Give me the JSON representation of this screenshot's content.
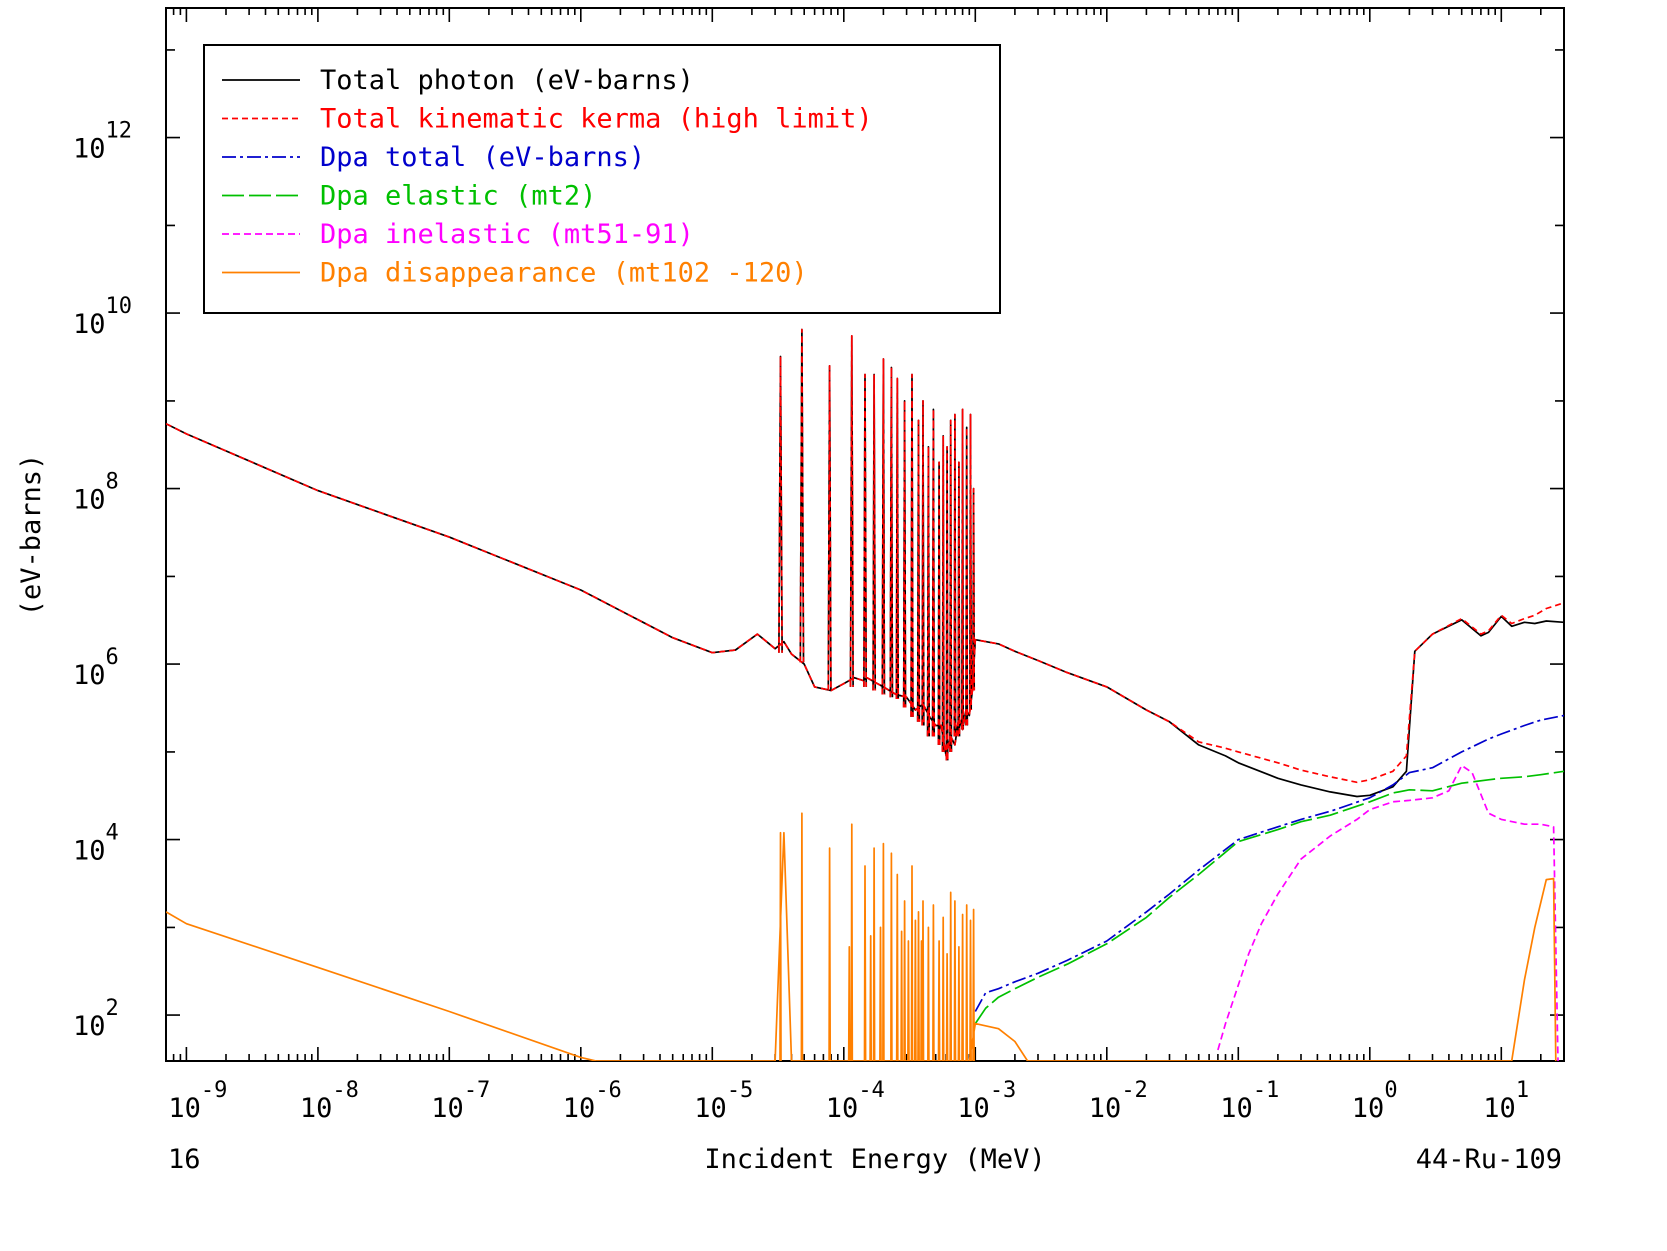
{
  "chart_data": {
    "type": "line",
    "title": "",
    "xlabel": "Incident Energy (MeV)",
    "ylabel": "(eV-barns)",
    "x_scale": "log",
    "y_scale": "log",
    "xlim": [
      7e-10,
      30
    ],
    "ylim": [
      30,
      30000000000000.0
    ],
    "grid": false,
    "legend_position": "top-left",
    "corner_left": "16",
    "corner_right": "44-Ru-109",
    "x_ticks": [
      {
        "value": 1e-09,
        "base": "10",
        "exp": "-9"
      },
      {
        "value": 1e-08,
        "base": "10",
        "exp": "-8"
      },
      {
        "value": 1e-07,
        "base": "10",
        "exp": "-7"
      },
      {
        "value": 1e-06,
        "base": "10",
        "exp": "-6"
      },
      {
        "value": 1e-05,
        "base": "10",
        "exp": "-5"
      },
      {
        "value": 0.0001,
        "base": "10",
        "exp": "-4"
      },
      {
        "value": 0.001,
        "base": "10",
        "exp": "-3"
      },
      {
        "value": 0.01,
        "base": "10",
        "exp": "-2"
      },
      {
        "value": 0.1,
        "base": "10",
        "exp": "-1"
      },
      {
        "value": 1,
        "base": "10",
        "exp": "0"
      },
      {
        "value": 10,
        "base": "10",
        "exp": "1"
      }
    ],
    "y_ticks": [
      {
        "value": 100,
        "base": "10",
        "exp": "2"
      },
      {
        "value": 10000,
        "base": "10",
        "exp": "4"
      },
      {
        "value": 1000000,
        "base": "10",
        "exp": "6"
      },
      {
        "value": 100000000,
        "base": "10",
        "exp": "8"
      },
      {
        "value": 10000000000,
        "base": "10",
        "exp": "10"
      },
      {
        "value": 1000000000000,
        "base": "10",
        "exp": "12"
      }
    ],
    "series": [
      {
        "name": "Total photon (eV-barns)",
        "color": "#000000",
        "dash": "",
        "x": [
          7e-10,
          1e-09,
          1e-08,
          1e-07,
          1e-06,
          5e-06,
          1e-05,
          1.5e-05,
          2.2e-05,
          3e-05,
          3.5e-05,
          4e-05,
          5e-05,
          6e-05,
          8e-05,
          0.0001,
          0.00012,
          0.00014,
          0.00015,
          0.00018,
          0.0002,
          0.00025,
          0.0003,
          0.00035,
          0.0004,
          0.00045,
          0.0005,
          0.00055,
          0.0006,
          0.00065,
          0.0007,
          0.00075,
          0.0008,
          0.00085,
          0.0009,
          0.00095,
          0.001,
          0.0015,
          0.002,
          0.003,
          0.005,
          0.01,
          0.02,
          0.03,
          0.05,
          0.08,
          0.1,
          0.2,
          0.3,
          0.5,
          0.8,
          1.0,
          1.5,
          1.9,
          2.2,
          3,
          5,
          7,
          8,
          10,
          12,
          15,
          18,
          22,
          30
        ],
        "y": [
          550000000,
          420000000,
          95000000,
          28000000,
          7000000,
          2000000,
          1350000,
          1450000,
          2200000,
          1500000,
          1800000,
          1300000,
          1000000,
          550000,
          500000,
          600000,
          700000,
          650000,
          700000,
          600000,
          550000,
          450000,
          420000,
          300000,
          350000,
          250000,
          200000,
          200000,
          90000,
          150000,
          120000,
          250000,
          180000,
          300000,
          260000,
          500000,
          1900000,
          1700000,
          1400000,
          1100000,
          800000,
          550000,
          300000,
          220000,
          120000,
          90000,
          75000,
          50000,
          42000,
          35000,
          31000,
          32000,
          40000,
          60000,
          1400000,
          2200000,
          3200000,
          2100000,
          2300000,
          3500000,
          2700000,
          3000000,
          2900000,
          3100000,
          3000000
        ]
      },
      {
        "name": "Total kinematic kerma (high limit)",
        "color": "#ff0000",
        "dash": "6,4",
        "x": [
          7e-10,
          1e-09,
          1e-08,
          1e-07,
          1e-06,
          5e-06,
          1e-05,
          1.5e-05,
          2.2e-05,
          3e-05,
          3.5e-05,
          4e-05,
          5e-05,
          6e-05,
          8e-05,
          0.0001,
          0.00012,
          0.00014,
          0.00015,
          0.00018,
          0.0002,
          0.00025,
          0.0003,
          0.00035,
          0.0004,
          0.00045,
          0.0005,
          0.00055,
          0.0006,
          0.00065,
          0.0007,
          0.00075,
          0.0008,
          0.00085,
          0.0009,
          0.00095,
          0.001,
          0.0015,
          0.002,
          0.003,
          0.005,
          0.01,
          0.02,
          0.03,
          0.05,
          0.08,
          0.1,
          0.2,
          0.3,
          0.5,
          0.8,
          1.0,
          1.5,
          1.9,
          2.2,
          3,
          5,
          7,
          8,
          10,
          12,
          15,
          18,
          22,
          30
        ],
        "y": [
          550000000,
          420000000,
          95000000,
          28000000,
          7000000,
          2000000,
          1350000,
          1450000,
          2200000,
          1500000,
          1800000,
          1300000,
          1000000,
          550000,
          500000,
          600000,
          700000,
          650000,
          700000,
          600000,
          550000,
          450000,
          420000,
          300000,
          350000,
          250000,
          200000,
          200000,
          90000,
          150000,
          120000,
          250000,
          180000,
          300000,
          260000,
          500000,
          1900000,
          1700000,
          1400000,
          1100000,
          800000,
          550000,
          300000,
          220000,
          130000,
          110000,
          100000,
          75000,
          62000,
          52000,
          45000,
          48000,
          60000,
          90000,
          1400000,
          2200000,
          3300000,
          2200000,
          2400000,
          3600000,
          2900000,
          3300000,
          3600000,
          4300000,
          5000000
        ]
      },
      {
        "name": "Dpa total (eV-barns)",
        "color": "#0000cc",
        "dash": "14,4,3,4",
        "x": [
          0.001,
          0.0012,
          0.0015,
          0.002,
          0.003,
          0.005,
          0.01,
          0.02,
          0.03,
          0.05,
          0.1,
          0.2,
          0.3,
          0.5,
          1.0,
          1.5,
          2,
          3,
          5,
          8,
          10,
          15,
          20,
          30
        ],
        "y": [
          110,
          180,
          200,
          240,
          300,
          420,
          700,
          1500,
          2400,
          4500,
          10000,
          14000,
          17000,
          21000,
          30000,
          42000,
          58000,
          66000,
          100000,
          140000,
          160000,
          200000,
          230000,
          260000
        ]
      },
      {
        "name": "Dpa elastic (mt2)",
        "color": "#00c000",
        "dash": "22,5",
        "x": [
          0.001,
          0.0012,
          0.0015,
          0.002,
          0.003,
          0.005,
          0.01,
          0.02,
          0.03,
          0.05,
          0.1,
          0.2,
          0.3,
          0.5,
          1.0,
          1.5,
          2,
          3,
          5,
          8,
          10,
          15,
          20,
          30
        ],
        "y": [
          80,
          120,
          160,
          200,
          270,
          380,
          650,
          1300,
          2200,
          4000,
          9500,
          13000,
          16000,
          19000,
          27000,
          34000,
          37000,
          36000,
          44000,
          48000,
          50000,
          52000,
          55000,
          60000
        ]
      },
      {
        "name": "Dpa inelastic (mt51-91)",
        "color": "#ff00ff",
        "dash": "7,4",
        "x": [
          0.07,
          0.08,
          0.1,
          0.12,
          0.15,
          0.2,
          0.3,
          0.5,
          0.8,
          1.0,
          1.5,
          2,
          3,
          4,
          5,
          6,
          8,
          10,
          15,
          20,
          25,
          27
        ],
        "y": [
          40,
          80,
          220,
          500,
          1100,
          2400,
          6000,
          11000,
          17000,
          22000,
          27000,
          28000,
          30000,
          36000,
          70000,
          58000,
          20000,
          17000,
          15000,
          15000,
          14000,
          30
        ]
      },
      {
        "name": "Dpa disappearance (mt102 -120)",
        "color": "#ff8000",
        "dash": "",
        "x": [
          7e-10,
          1e-09,
          1e-08,
          1e-07,
          1e-06,
          1.3e-06,
          3e-05,
          3.5e-05,
          4e-05,
          5e-05,
          8e-05,
          0.0001,
          0.00012,
          0.00015,
          0.0002,
          0.0003,
          0.0004,
          0.0005,
          0.0006,
          0.0007,
          0.0008,
          0.0009,
          0.001,
          0.0015,
          0.002,
          0.0025,
          12,
          15,
          18,
          22,
          25,
          26
        ],
        "y": [
          1500,
          1100,
          350,
          110,
          33,
          30,
          30,
          12000,
          30,
          30,
          30,
          30,
          30,
          30,
          30,
          30,
          30,
          30,
          30,
          30,
          30,
          30,
          80,
          70,
          50,
          30,
          30,
          250,
          1000,
          3500,
          3600,
          30
        ]
      }
    ],
    "resonances": [
      {
        "x": 3.3e-05,
        "y": 3200000000,
        "dip": 1350000,
        "w": 0.012
      },
      {
        "x": 4.8e-05,
        "y": 6500000000,
        "dip": 1050000,
        "w": 0.012
      },
      {
        "x": 7.8e-05,
        "y": 2500000000,
        "dip": 500000,
        "w": 0.01
      },
      {
        "x": 0.000115,
        "y": 5500000000,
        "dip": 550000,
        "w": 0.01
      },
      {
        "x": 0.000145,
        "y": 2000000000,
        "dip": 550000,
        "w": 0.009
      },
      {
        "x": 0.00017,
        "y": 2000000000,
        "dip": 500000,
        "w": 0.008
      },
      {
        "x": 0.0002,
        "y": 3000000000,
        "dip": 450000,
        "w": 0.008
      },
      {
        "x": 0.00023,
        "y": 2400000000,
        "dip": 420000,
        "w": 0.008
      },
      {
        "x": 0.000255,
        "y": 1800000000,
        "dip": 400000,
        "w": 0.007
      },
      {
        "x": 0.00029,
        "y": 1000000000,
        "dip": 320000,
        "w": 0.007
      },
      {
        "x": 0.00033,
        "y": 2000000000,
        "dip": 250000,
        "w": 0.007
      },
      {
        "x": 0.00037,
        "y": 600000000,
        "dip": 220000,
        "w": 0.006
      },
      {
        "x": 0.0004,
        "y": 1000000000,
        "dip": 200000,
        "w": 0.006
      },
      {
        "x": 0.00044,
        "y": 300000000,
        "dip": 150000,
        "w": 0.006
      },
      {
        "x": 0.00048,
        "y": 800000000,
        "dip": 150000,
        "w": 0.006
      },
      {
        "x": 0.00053,
        "y": 200000000,
        "dip": 120000,
        "w": 0.005
      },
      {
        "x": 0.00057,
        "y": 400000000,
        "dip": 100000,
        "w": 0.005
      },
      {
        "x": 0.00061,
        "y": 300000000,
        "dip": 80000,
        "w": 0.005
      },
      {
        "x": 0.00065,
        "y": 600000000,
        "dip": 100000,
        "w": 0.005
      },
      {
        "x": 0.0007,
        "y": 700000000,
        "dip": 150000,
        "w": 0.005
      },
      {
        "x": 0.00075,
        "y": 200000000,
        "dip": 150000,
        "w": 0.005
      },
      {
        "x": 0.0008,
        "y": 800000000,
        "dip": 180000,
        "w": 0.005
      },
      {
        "x": 0.00086,
        "y": 500000000,
        "dip": 200000,
        "w": 0.005
      },
      {
        "x": 0.00092,
        "y": 700000000,
        "dip": 300000,
        "w": 0.005
      },
      {
        "x": 0.00097,
        "y": 100000000,
        "dip": 500000,
        "w": 0.005
      }
    ],
    "disappearance_spikes": [
      {
        "x": 3.3e-05,
        "y": 12000
      },
      {
        "x": 4.8e-05,
        "y": 20000
      },
      {
        "x": 7.8e-05,
        "y": 8000
      },
      {
        "x": 0.000115,
        "y": 15000
      },
      {
        "x": 0.00011,
        "y": 600
      },
      {
        "x": 0.000145,
        "y": 5000
      },
      {
        "x": 0.00016,
        "y": 800
      },
      {
        "x": 0.00017,
        "y": 8000
      },
      {
        "x": 0.00019,
        "y": 1000
      },
      {
        "x": 0.0002,
        "y": 9000
      },
      {
        "x": 0.00023,
        "y": 7000
      },
      {
        "x": 0.000255,
        "y": 4000
      },
      {
        "x": 0.000275,
        "y": 900
      },
      {
        "x": 0.00029,
        "y": 2000
      },
      {
        "x": 0.00031,
        "y": 700
      },
      {
        "x": 0.00033,
        "y": 5000
      },
      {
        "x": 0.00035,
        "y": 1200
      },
      {
        "x": 0.00037,
        "y": 1500
      },
      {
        "x": 0.00039,
        "y": 700
      },
      {
        "x": 0.0004,
        "y": 2000
      },
      {
        "x": 0.00044,
        "y": 1000
      },
      {
        "x": 0.00048,
        "y": 1800
      },
      {
        "x": 0.00053,
        "y": 700
      },
      {
        "x": 0.00057,
        "y": 1300
      },
      {
        "x": 0.00061,
        "y": 500
      },
      {
        "x": 0.00065,
        "y": 2500
      },
      {
        "x": 0.0007,
        "y": 2000
      },
      {
        "x": 0.00075,
        "y": 600
      },
      {
        "x": 0.0008,
        "y": 1400
      },
      {
        "x": 0.00086,
        "y": 1800
      },
      {
        "x": 0.00092,
        "y": 1200
      },
      {
        "x": 0.00097,
        "y": 1600
      }
    ]
  }
}
